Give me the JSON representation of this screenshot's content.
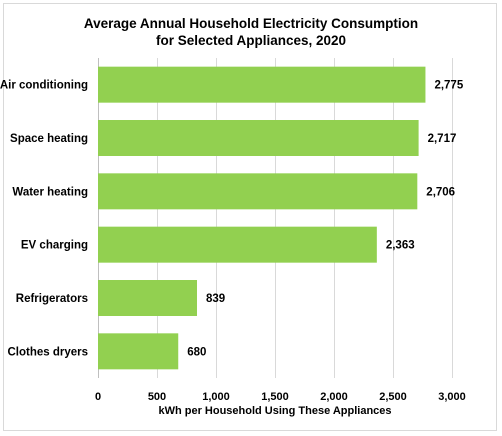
{
  "chart_data": {
    "type": "bar",
    "orientation": "horizontal",
    "title_lines": [
      "Average Annual Household Electricity Consumption",
      "for Selected Appliances, 2020"
    ],
    "categories": [
      "Air conditioning",
      "Space heating",
      "Water heating",
      "EV charging",
      "Refrigerators",
      "Clothes dryers"
    ],
    "values": [
      2775,
      2717,
      2706,
      2363,
      839,
      680
    ],
    "value_labels": [
      "2,775",
      "2,717",
      "2,706",
      "2,363",
      "839",
      "680"
    ],
    "x_ticks": [
      0,
      500,
      1000,
      1500,
      2000,
      2500,
      3000
    ],
    "x_tick_labels": [
      "0",
      "500",
      "1,000",
      "1,500",
      "2,000",
      "2,500",
      "3,000"
    ],
    "xlabel": "kWh per Household Using These Appliances",
    "ylabel": "",
    "xlim": [
      0,
      3000
    ],
    "grid": true,
    "bar_color": "#92d050",
    "legend": "none"
  }
}
